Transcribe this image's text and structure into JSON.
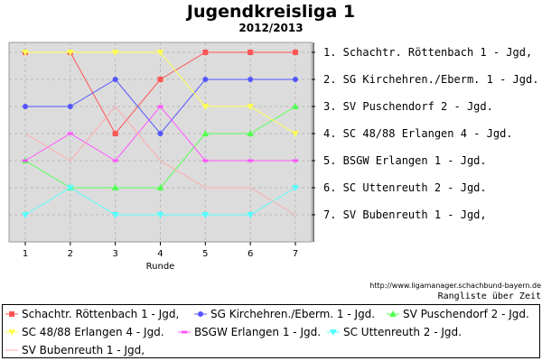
{
  "chart_data": {
    "type": "line",
    "title": "Jugendkreisliga 1",
    "subtitle": "2012/2013",
    "xlabel": "Runde",
    "ylabel": "",
    "x": [
      1,
      2,
      3,
      4,
      5,
      6,
      7
    ],
    "x_tick_labels": [
      "1",
      "2",
      "3",
      "4",
      "5",
      "6",
      "7"
    ],
    "ylim": [
      1,
      7
    ],
    "y_inverted": true,
    "grid": true,
    "legend_position": "bottom",
    "series": [
      {
        "name": "Schachtr. Röttenbach 1 - Jgd,",
        "values": [
          1,
          1,
          4,
          2,
          1,
          1,
          1
        ],
        "color": "#ff5555",
        "marker": "square"
      },
      {
        "name": "SG Kirchehren./Eberm. 1 - Jgd.",
        "values": [
          3,
          3,
          2,
          4,
          2,
          2,
          2
        ],
        "color": "#5555ff",
        "marker": "circle"
      },
      {
        "name": "SV Puschendorf 2 - Jgd.",
        "values": [
          5,
          6,
          6,
          6,
          4,
          4,
          3
        ],
        "color": "#55ff55",
        "marker": "triangle-up"
      },
      {
        "name": "SC 48/88 Erlangen 4 - Jgd.",
        "values": [
          1,
          1,
          1,
          1,
          3,
          3,
          4
        ],
        "color": "#ffff55",
        "marker": "triangle-down"
      },
      {
        "name": "BSGW Erlangen 1 - Jgd.",
        "values": [
          5,
          4,
          5,
          3,
          5,
          5,
          5
        ],
        "color": "#ff55ff",
        "marker": "bar"
      },
      {
        "name": "SC Uttenreuth 2 - Jgd.",
        "values": [
          7,
          6,
          7,
          7,
          7,
          7,
          6
        ],
        "color": "#55ffff",
        "marker": "triangle-down"
      },
      {
        "name": "SV Bubenreuth 1 - Jgd,",
        "values": [
          4,
          5,
          3,
          5,
          6,
          6,
          7
        ],
        "color": "#ffaaaa",
        "marker": "none"
      }
    ],
    "right_labels": [
      "1. Schachtr. Röttenbach 1 - Jgd,",
      "2. SG Kirchehren./Eberm. 1 - Jgd.",
      "3. SV Puschendorf 2 - Jgd.",
      "4. SC 48/88 Erlangen 4 - Jgd.",
      "5. BSGW Erlangen 1 - Jgd.",
      "6. SC Uttenreuth 2 - Jgd.",
      "7. SV Bubenreuth 1 - Jgd,"
    ],
    "url_note": "http://www.ligamanager.schachbund-bayern.de",
    "footer_note": "Rangliste über Zeit"
  }
}
